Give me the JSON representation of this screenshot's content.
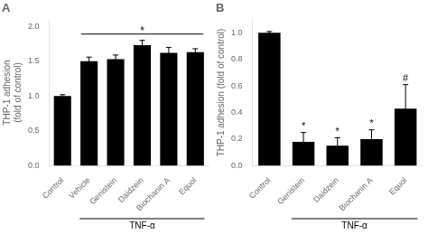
{
  "chart_data": [
    {
      "type": "bar",
      "title": "A",
      "categories": [
        "Control",
        "Vehicle",
        "Genistein",
        "Daidzein",
        "Biochanin A",
        "Equol"
      ],
      "values": [
        1.0,
        1.5,
        1.53,
        1.73,
        1.62,
        1.63
      ],
      "errors": [
        0.02,
        0.06,
        0.06,
        0.07,
        0.08,
        0.05
      ],
      "color": "#000000",
      "ylabel": "THP-1 adhesion\n(fold of control)",
      "xlabel": {
        "text": "TNF-α",
        "from": "Vehicle",
        "to": "Equol"
      },
      "annotations": [
        {
          "text": "*",
          "from": "Vehicle",
          "to": "Equol"
        }
      ],
      "ylim": [
        0,
        2.1
      ],
      "yticks": [
        {
          "value": 0,
          "label": "0.0"
        },
        0.5,
        {
          "value": 1.0,
          "label": "1.0"
        },
        1.5,
        {
          "value": 2.0,
          "label": "2.0"
        }
      ],
      "grid": false
    },
    {
      "type": "bar",
      "title": "B",
      "categories": [
        "Control",
        "Genistein",
        "Daidzein",
        "Biochanin A",
        "Equol"
      ],
      "values": [
        1.0,
        0.18,
        0.15,
        0.2,
        0.43
      ],
      "errors": [
        0.01,
        0.07,
        0.06,
        0.07,
        0.18
      ],
      "color": "#000000",
      "ylabel": "THP-1 adhesion (fold of control)",
      "xlabel": {
        "text": "TNF-α",
        "from": "Genistein",
        "to": "Equol"
      },
      "annotations": [
        {
          "text": "*",
          "category": "Genistein"
        },
        {
          "text": "*",
          "category": "Daidzein"
        },
        {
          "text": "*",
          "category": "Biochanin A"
        },
        {
          "text": "#",
          "category": "Equol"
        }
      ],
      "ylim": [
        0,
        1.1
      ],
      "yticks": [
        {
          "value": 0,
          "label": "0.0"
        },
        0.2,
        0.4,
        0.6,
        0.8,
        {
          "value": 1.0,
          "label": "1.0"
        }
      ],
      "grid": false
    }
  ]
}
